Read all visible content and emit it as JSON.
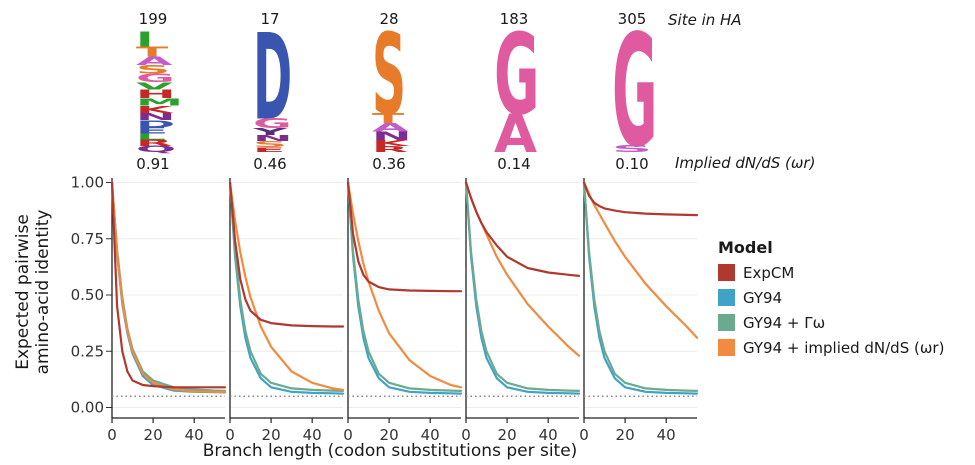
{
  "figure": {
    "site_header": "Site in HA",
    "omega_header": "Implied dN/dS (ωr)"
  },
  "axes": {
    "ylabel_line1": "Expected pairwise",
    "ylabel_line2": "amino-acid identity",
    "xlabel": "Branch length (codon substitutions per site)",
    "y_ticks": [
      "0.00",
      "0.25",
      "0.50",
      "0.75",
      "1.00"
    ],
    "x_ticks": [
      "0",
      "20",
      "40"
    ]
  },
  "legend": {
    "title": "Model",
    "items": [
      {
        "label": "ExpCM",
        "color": "#b0392f"
      },
      {
        "label": "GY94",
        "color": "#3ea3c6"
      },
      {
        "label": "GY94 + Γω",
        "color": "#6aaa8f"
      },
      {
        "label": "GY94 + implied dN/dS (ωr)",
        "color": "#f28a3f"
      }
    ]
  },
  "logos": [
    {
      "site": "199",
      "omega": "0.91",
      "letters": [
        {
          "aa": "I",
          "color": "#2ca02c",
          "frac": 0.12
        },
        {
          "aa": "T",
          "color": "#e77b2a",
          "frac": 0.08
        },
        {
          "aa": "A",
          "color": "#c45bc8",
          "frac": 0.07
        },
        {
          "aa": "S",
          "color": "#e77b2a",
          "frac": 0.07
        },
        {
          "aa": "G",
          "color": "#e05aa0",
          "frac": 0.07
        },
        {
          "aa": "V",
          "color": "#2ca02c",
          "frac": 0.06
        },
        {
          "aa": "H",
          "color": "#c62828",
          "frac": 0.07
        },
        {
          "aa": "M",
          "color": "#2ca02c",
          "frac": 0.06
        },
        {
          "aa": "K",
          "color": "#c62828",
          "frac": 0.06
        },
        {
          "aa": "N",
          "color": "#7b2e8e",
          "frac": 0.06
        },
        {
          "aa": "D",
          "color": "#3a55b0",
          "frac": 0.06
        },
        {
          "aa": "E",
          "color": "#3a55b0",
          "frac": 0.05
        },
        {
          "aa": "L",
          "color": "#2ca02c",
          "frac": 0.05
        },
        {
          "aa": "R",
          "color": "#c62828",
          "frac": 0.05
        },
        {
          "aa": "Q",
          "color": "#7b2e8e",
          "frac": 0.05
        }
      ]
    },
    {
      "site": "17",
      "omega": "0.46",
      "letters": [
        {
          "aa": "D",
          "color": "#3a55b0",
          "frac": 0.72
        },
        {
          "aa": "G",
          "color": "#e05aa0",
          "frac": 0.08
        },
        {
          "aa": "Y",
          "color": "#5a2d7a",
          "frac": 0.06
        },
        {
          "aa": "N",
          "color": "#7b2e8e",
          "frac": 0.05
        },
        {
          "aa": "S",
          "color": "#e77b2a",
          "frac": 0.05
        },
        {
          "aa": "E",
          "color": "#c62828",
          "frac": 0.04
        }
      ]
    },
    {
      "site": "28",
      "omega": "0.36",
      "letters": [
        {
          "aa": "S",
          "color": "#e77b2a",
          "frac": 0.68
        },
        {
          "aa": "T",
          "color": "#e77b2a",
          "frac": 0.08
        },
        {
          "aa": "A",
          "color": "#c45bc8",
          "frac": 0.07
        },
        {
          "aa": "N",
          "color": "#7b2e8e",
          "frac": 0.07
        },
        {
          "aa": "K",
          "color": "#c62828",
          "frac": 0.05
        },
        {
          "aa": "R",
          "color": "#c62828",
          "frac": 0.05
        }
      ]
    },
    {
      "site": "183",
      "omega": "0.14",
      "letters": [
        {
          "aa": "G",
          "color": "#e05aa0",
          "frac": 0.68
        },
        {
          "aa": "A",
          "color": "#e05aa0",
          "frac": 0.32
        }
      ]
    },
    {
      "site": "305",
      "omega": "0.10",
      "letters": [
        {
          "aa": "G",
          "color": "#e05aa0",
          "frac": 0.94
        },
        {
          "aa": "S",
          "color": "#c45bc8",
          "frac": 0.06
        }
      ]
    }
  ],
  "chart_data": {
    "type": "line",
    "xlabel": "Branch length (codon substitutions per site)",
    "ylabel": "Expected pairwise amino-acid identity",
    "xlim": [
      0,
      55
    ],
    "ylim": [
      -0.02,
      1.02
    ],
    "baseline": 0.05,
    "panels": [
      {
        "site": "199",
        "omega": 0.91,
        "series": [
          {
            "name": "ExpCM",
            "x": [
              0,
              2.5,
              5,
              7.5,
              10,
              15,
              20,
              30,
              40,
              50,
              55
            ],
            "y": [
              1.0,
              0.45,
              0.25,
              0.16,
              0.12,
              0.1,
              0.095,
              0.09,
              0.09,
              0.09,
              0.09
            ]
          },
          {
            "name": "GY94",
            "x": [
              0,
              2.5,
              5,
              7.5,
              10,
              15,
              20,
              30,
              40,
              50,
              55
            ],
            "y": [
              1.0,
              0.68,
              0.46,
              0.33,
              0.24,
              0.14,
              0.1,
              0.075,
              0.07,
              0.068,
              0.067
            ]
          },
          {
            "name": "GY94 + Γω",
            "x": [
              0,
              2.5,
              5,
              7.5,
              10,
              15,
              20,
              30,
              40,
              50,
              55
            ],
            "y": [
              1.0,
              0.7,
              0.49,
              0.35,
              0.26,
              0.16,
              0.12,
              0.09,
              0.08,
              0.075,
              0.074
            ]
          },
          {
            "name": "GY94 + implied dN/dS (ωr)",
            "x": [
              0,
              2.5,
              5,
              7.5,
              10,
              15,
              20,
              30,
              40,
              50,
              55
            ],
            "y": [
              1.0,
              0.69,
              0.47,
              0.34,
              0.25,
              0.15,
              0.11,
              0.08,
              0.072,
              0.07,
              0.069
            ]
          }
        ]
      },
      {
        "site": "17",
        "omega": 0.46,
        "series": [
          {
            "name": "ExpCM",
            "x": [
              0,
              2.5,
              5,
              7.5,
              10,
              15,
              20,
              30,
              40,
              50,
              55
            ],
            "y": [
              1.0,
              0.74,
              0.57,
              0.48,
              0.43,
              0.39,
              0.375,
              0.365,
              0.362,
              0.36,
              0.36
            ]
          },
          {
            "name": "GY94",
            "x": [
              0,
              2.5,
              5,
              7.5,
              10,
              15,
              20,
              30,
              40,
              50,
              55
            ],
            "y": [
              1.0,
              0.67,
              0.45,
              0.31,
              0.22,
              0.13,
              0.09,
              0.07,
              0.065,
              0.063,
              0.062
            ]
          },
          {
            "name": "GY94 + Γω",
            "x": [
              0,
              2.5,
              5,
              7.5,
              10,
              15,
              20,
              30,
              40,
              50,
              55
            ],
            "y": [
              1.0,
              0.69,
              0.48,
              0.34,
              0.25,
              0.15,
              0.11,
              0.085,
              0.078,
              0.075,
              0.074
            ]
          },
          {
            "name": "GY94 + implied dN/dS (ωr)",
            "x": [
              0,
              2.5,
              5,
              7.5,
              10,
              15,
              20,
              30,
              40,
              50,
              55
            ],
            "y": [
              1.0,
              0.83,
              0.69,
              0.58,
              0.49,
              0.36,
              0.27,
              0.16,
              0.11,
              0.085,
              0.078
            ]
          }
        ]
      },
      {
        "site": "28",
        "omega": 0.36,
        "series": [
          {
            "name": "ExpCM",
            "x": [
              0,
              2.5,
              5,
              7.5,
              10,
              15,
              20,
              30,
              40,
              50,
              55
            ],
            "y": [
              1.0,
              0.77,
              0.65,
              0.59,
              0.56,
              0.535,
              0.525,
              0.52,
              0.518,
              0.517,
              0.517
            ]
          },
          {
            "name": "GY94",
            "x": [
              0,
              2.5,
              5,
              7.5,
              10,
              15,
              20,
              30,
              40,
              50,
              55
            ],
            "y": [
              1.0,
              0.67,
              0.45,
              0.31,
              0.22,
              0.13,
              0.09,
              0.07,
              0.065,
              0.063,
              0.062
            ]
          },
          {
            "name": "GY94 + Γω",
            "x": [
              0,
              2.5,
              5,
              7.5,
              10,
              15,
              20,
              30,
              40,
              50,
              55
            ],
            "y": [
              1.0,
              0.69,
              0.48,
              0.34,
              0.25,
              0.15,
              0.11,
              0.085,
              0.078,
              0.075,
              0.074
            ]
          },
          {
            "name": "GY94 + implied dN/dS (ωr)",
            "x": [
              0,
              2.5,
              5,
              7.5,
              10,
              15,
              20,
              30,
              40,
              50,
              55
            ],
            "y": [
              1.0,
              0.86,
              0.74,
              0.64,
              0.56,
              0.43,
              0.33,
              0.21,
              0.14,
              0.1,
              0.09
            ]
          }
        ]
      },
      {
        "site": "183",
        "omega": 0.14,
        "series": [
          {
            "name": "ExpCM",
            "x": [
              0,
              2.5,
              5,
              7.5,
              10,
              15,
              20,
              30,
              40,
              50,
              55
            ],
            "y": [
              1.0,
              0.93,
              0.87,
              0.82,
              0.78,
              0.72,
              0.67,
              0.62,
              0.6,
              0.59,
              0.585
            ]
          },
          {
            "name": "GY94",
            "x": [
              0,
              2.5,
              5,
              7.5,
              10,
              15,
              20,
              30,
              40,
              50,
              55
            ],
            "y": [
              1.0,
              0.67,
              0.45,
              0.31,
              0.22,
              0.13,
              0.09,
              0.07,
              0.065,
              0.063,
              0.062
            ]
          },
          {
            "name": "GY94 + Γω",
            "x": [
              0,
              2.5,
              5,
              7.5,
              10,
              15,
              20,
              30,
              40,
              50,
              55
            ],
            "y": [
              1.0,
              0.69,
              0.48,
              0.34,
              0.25,
              0.15,
              0.11,
              0.085,
              0.078,
              0.075,
              0.074
            ]
          },
          {
            "name": "GY94 + implied dN/dS (ωr)",
            "x": [
              0,
              2.5,
              5,
              7.5,
              10,
              15,
              20,
              30,
              40,
              50,
              55
            ],
            "y": [
              1.0,
              0.93,
              0.87,
              0.82,
              0.77,
              0.67,
              0.59,
              0.46,
              0.36,
              0.27,
              0.23
            ]
          }
        ]
      },
      {
        "site": "305",
        "omega": 0.1,
        "series": [
          {
            "name": "ExpCM",
            "x": [
              0,
              2.5,
              5,
              7.5,
              10,
              15,
              20,
              30,
              40,
              50,
              55
            ],
            "y": [
              1.0,
              0.94,
              0.91,
              0.895,
              0.885,
              0.875,
              0.868,
              0.862,
              0.858,
              0.856,
              0.855
            ]
          },
          {
            "name": "GY94",
            "x": [
              0,
              2.5,
              5,
              7.5,
              10,
              15,
              20,
              30,
              40,
              50,
              55
            ],
            "y": [
              1.0,
              0.67,
              0.45,
              0.31,
              0.22,
              0.13,
              0.09,
              0.07,
              0.065,
              0.063,
              0.062
            ]
          },
          {
            "name": "GY94 + Γω",
            "x": [
              0,
              2.5,
              5,
              7.5,
              10,
              15,
              20,
              30,
              40,
              50,
              55
            ],
            "y": [
              1.0,
              0.69,
              0.48,
              0.34,
              0.25,
              0.15,
              0.11,
              0.085,
              0.078,
              0.075,
              0.074
            ]
          },
          {
            "name": "GY94 + implied dN/dS (ωr)",
            "x": [
              0,
              2.5,
              5,
              7.5,
              10,
              15,
              20,
              30,
              40,
              50,
              55
            ],
            "y": [
              1.0,
              0.95,
              0.9,
              0.86,
              0.82,
              0.74,
              0.67,
              0.55,
              0.45,
              0.36,
              0.31
            ]
          }
        ]
      }
    ]
  }
}
